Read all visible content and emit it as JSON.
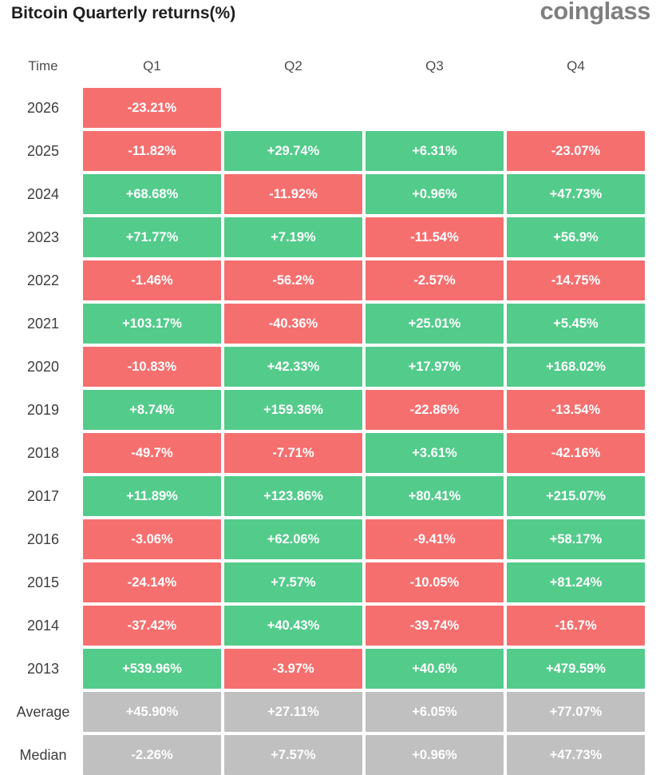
{
  "header": {
    "title": "Bitcoin Quarterly returns(%)",
    "logo": "coinglass"
  },
  "theme": {
    "positive": "#53CB8B",
    "negative": "#F66F6F",
    "neutral": "#C0C0C0",
    "logo_gray": "#7f7f7f"
  },
  "table": {
    "columns": [
      "Time",
      "Q1",
      "Q2",
      "Q3",
      "Q4"
    ],
    "rows": [
      {
        "label": "2026",
        "type": "year",
        "values": [
          "-23.21%",
          "",
          "",
          ""
        ]
      },
      {
        "label": "2025",
        "type": "year",
        "values": [
          "-11.82%",
          "+29.74%",
          "+6.31%",
          "-23.07%"
        ]
      },
      {
        "label": "2024",
        "type": "year",
        "values": [
          "+68.68%",
          "-11.92%",
          "+0.96%",
          "+47.73%"
        ]
      },
      {
        "label": "2023",
        "type": "year",
        "values": [
          "+71.77%",
          "+7.19%",
          "-11.54%",
          "+56.9%"
        ]
      },
      {
        "label": "2022",
        "type": "year",
        "values": [
          "-1.46%",
          "-56.2%",
          "-2.57%",
          "-14.75%"
        ]
      },
      {
        "label": "2021",
        "type": "year",
        "values": [
          "+103.17%",
          "-40.36%",
          "+25.01%",
          "+5.45%"
        ]
      },
      {
        "label": "2020",
        "type": "year",
        "values": [
          "-10.83%",
          "+42.33%",
          "+17.97%",
          "+168.02%"
        ]
      },
      {
        "label": "2019",
        "type": "year",
        "values": [
          "+8.74%",
          "+159.36%",
          "-22.86%",
          "-13.54%"
        ]
      },
      {
        "label": "2018",
        "type": "year",
        "values": [
          "-49.7%",
          "-7.71%",
          "+3.61%",
          "-42.16%"
        ]
      },
      {
        "label": "2017",
        "type": "year",
        "values": [
          "+11.89%",
          "+123.86%",
          "+80.41%",
          "+215.07%"
        ]
      },
      {
        "label": "2016",
        "type": "year",
        "values": [
          "-3.06%",
          "+62.06%",
          "-9.41%",
          "+58.17%"
        ]
      },
      {
        "label": "2015",
        "type": "year",
        "values": [
          "-24.14%",
          "+7.57%",
          "-10.05%",
          "+81.24%"
        ]
      },
      {
        "label": "2014",
        "type": "year",
        "values": [
          "-37.42%",
          "+40.43%",
          "-39.74%",
          "-16.7%"
        ]
      },
      {
        "label": "2013",
        "type": "year",
        "values": [
          "+539.96%",
          "-3.97%",
          "+40.6%",
          "+479.59%"
        ]
      },
      {
        "label": "Average",
        "type": "stat",
        "values": [
          "+45.90%",
          "+27.11%",
          "+6.05%",
          "+77.07%"
        ]
      },
      {
        "label": "Median",
        "type": "stat",
        "values": [
          "-2.26%",
          "+7.57%",
          "+0.96%",
          "+47.73%"
        ]
      }
    ]
  },
  "chart_data": {
    "type": "heatmap",
    "title": "Bitcoin Quarterly returns(%)",
    "columns": [
      "Q1",
      "Q2",
      "Q3",
      "Q4"
    ],
    "years": [
      "2026",
      "2025",
      "2024",
      "2023",
      "2022",
      "2021",
      "2020",
      "2019",
      "2018",
      "2017",
      "2016",
      "2015",
      "2014",
      "2013"
    ],
    "values_pct": [
      [
        -23.21,
        null,
        null,
        null
      ],
      [
        -11.82,
        29.74,
        6.31,
        -23.07
      ],
      [
        68.68,
        -11.92,
        0.96,
        47.73
      ],
      [
        71.77,
        7.19,
        -11.54,
        56.9
      ],
      [
        -1.46,
        -56.2,
        -2.57,
        -14.75
      ],
      [
        103.17,
        -40.36,
        25.01,
        5.45
      ],
      [
        -10.83,
        42.33,
        17.97,
        168.02
      ],
      [
        8.74,
        159.36,
        -22.86,
        -13.54
      ],
      [
        -49.7,
        -7.71,
        3.61,
        -42.16
      ],
      [
        11.89,
        123.86,
        80.41,
        215.07
      ],
      [
        -3.06,
        62.06,
        -9.41,
        58.17
      ],
      [
        -24.14,
        7.57,
        -10.05,
        81.24
      ],
      [
        -37.42,
        40.43,
        -39.74,
        -16.7
      ],
      [
        539.96,
        -3.97,
        40.6,
        479.59
      ]
    ],
    "average_pct": [
      45.9,
      27.11,
      6.05,
      77.07
    ],
    "median_pct": [
      -2.26,
      7.57,
      0.96,
      47.73
    ],
    "color_rule": "positive cells green, negative cells red, Average/Median rows gray",
    "legend_position": "none",
    "grid": false
  }
}
